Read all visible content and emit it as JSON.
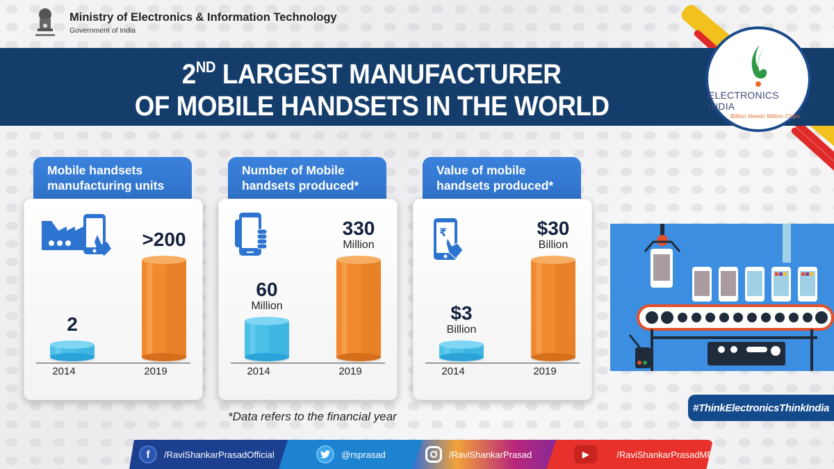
{
  "header": {
    "ministry": "Ministry of Electronics & Information Technology",
    "government": "Government of India",
    "emblem_icon": "national-emblem-icon"
  },
  "banner": {
    "line1_prefix": "2",
    "line1_sup": "ND",
    "line1_rest": " LARGEST MANUFACTURER",
    "line2": "OF MOBILE HANDSETS IN THE WORLD"
  },
  "logo": {
    "title": "ELECTRONICS INDIA",
    "tagline": "Billion Needs Million Chips"
  },
  "colors": {
    "banner": "#143d6b",
    "card_tab": "#2d70c8",
    "bar_2014": "#4bbfe8",
    "bar_2019": "#f18a2e",
    "value_text": "#14213d"
  },
  "chart_data": [
    {
      "type": "bar",
      "title": "Mobile handsets manufacturing units",
      "icon": "factory-phone-icon",
      "categories": [
        "2014",
        "2019"
      ],
      "values": [
        2,
        200
      ],
      "value_labels": [
        {
          "num": "2",
          "unit": ""
        },
        {
          "num": ">200",
          "unit": ""
        }
      ],
      "xlabel": "",
      "ylabel": ""
    },
    {
      "type": "bar",
      "title": "Number of Mobile handsets produced*",
      "icon": "phone-in-hand-icon",
      "categories": [
        "2014",
        "2019"
      ],
      "values": [
        60,
        330
      ],
      "unit": "Million",
      "value_labels": [
        {
          "num": "60",
          "unit": "Million"
        },
        {
          "num": "330",
          "unit": "Million"
        }
      ],
      "xlabel": "",
      "ylabel": ""
    },
    {
      "type": "bar",
      "title": "Value of mobile handsets produced*",
      "icon": "rupee-phone-icon",
      "categories": [
        "2014",
        "2019"
      ],
      "values": [
        3,
        30
      ],
      "unit": "Billion USD",
      "value_labels": [
        {
          "num": "$3",
          "unit": "Billion"
        },
        {
          "num": "$30",
          "unit": "Billion"
        }
      ],
      "xlabel": "",
      "ylabel": ""
    }
  ],
  "cards": [
    {
      "title_line1": "Mobile handsets",
      "title_line2": "manufacturing units"
    },
    {
      "title_line1": "Number of Mobile",
      "title_line2": "handsets produced*"
    },
    {
      "title_line1": "Value of mobile",
      "title_line2": "handsets produced*"
    }
  ],
  "footnote": "*Data refers to the financial year",
  "hashtag": "#ThinkElectronicsThinkIndia",
  "social": [
    {
      "network": "facebook",
      "icon": "facebook-icon",
      "glyph": "f",
      "handle": "/RaviShankarPrasadOfficial"
    },
    {
      "network": "twitter",
      "icon": "twitter-icon",
      "glyph": "🐦",
      "handle": "@rsprasad"
    },
    {
      "network": "instagram",
      "icon": "instagram-icon",
      "glyph": "◎",
      "handle": "/RaviShankarPrasad"
    },
    {
      "network": "youtube",
      "icon": "youtube-icon",
      "glyph": "▶",
      "handle": "/RaviShankarPrasadMP"
    }
  ]
}
